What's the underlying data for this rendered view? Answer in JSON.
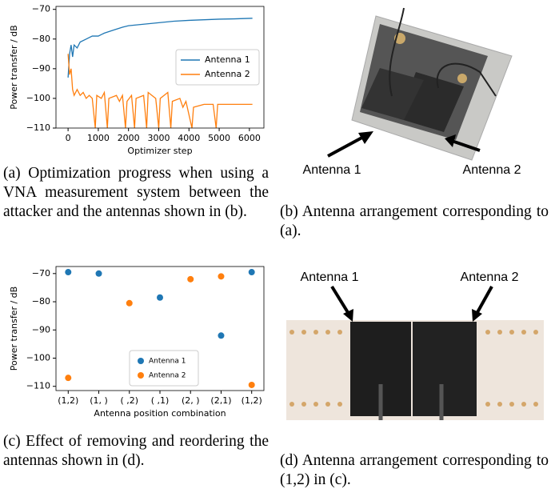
{
  "chart_data": [
    {
      "type": "line",
      "ylabel": "Power transfer / dB",
      "xlabel": "Optimizer step",
      "xlim": [
        -400,
        6480
      ],
      "ylim": [
        -110,
        -69
      ],
      "xticks": [
        0,
        1000,
        2000,
        3000,
        4000,
        5000,
        6000
      ],
      "yticks": [
        {
          "value": -70,
          "label": "−70"
        },
        {
          "value": -80,
          "label": "−80"
        },
        {
          "value": -90,
          "label": "−90"
        },
        {
          "value": -100,
          "label": "−100"
        },
        {
          "value": -110,
          "label": "−110"
        }
      ],
      "legend": "right",
      "series": [
        {
          "name": "Antenna 1",
          "color": "#1f77b4",
          "x": [
            0,
            50,
            100,
            150,
            200,
            300,
            400,
            600,
            800,
            1000,
            1200,
            1500,
            1800,
            2000,
            2500,
            3000,
            3500,
            4000,
            4500,
            5000,
            5500,
            6100
          ],
          "values": [
            -93,
            -85,
            -82,
            -86,
            -82,
            -83,
            -81,
            -80,
            -79,
            -79,
            -78,
            -77,
            -76,
            -75.5,
            -75,
            -74.5,
            -74,
            -73.7,
            -73.5,
            -73.3,
            -73.2,
            -73
          ]
        },
        {
          "name": "Antenna 2",
          "color": "#ff7f0e",
          "x": [
            0,
            50,
            100,
            150,
            200,
            300,
            400,
            500,
            600,
            700,
            800,
            900,
            950,
            1100,
            1200,
            1300,
            1350,
            1600,
            1700,
            1800,
            1900,
            1950,
            2100,
            2200,
            2250,
            2500,
            2600,
            2650,
            2900,
            3000,
            3050,
            3300,
            3400,
            3450,
            3700,
            3800,
            3900,
            4100,
            4150,
            4500,
            4800,
            4900,
            4950,
            5500,
            6100
          ],
          "values": [
            -85,
            -92,
            -90,
            -97,
            -99,
            -97,
            -99,
            -98,
            -100,
            -99,
            -100,
            -110,
            -99,
            -100,
            -98,
            -110,
            -100,
            -99,
            -101,
            -99,
            -110,
            -101,
            -99,
            -110,
            -100,
            -99,
            -110,
            -98,
            -100,
            -110,
            -100,
            -98,
            -110,
            -101,
            -100,
            -103,
            -101,
            -110,
            -103,
            -102,
            -102,
            -110,
            -102,
            -102,
            -102
          ]
        }
      ]
    },
    {
      "type": "scatter",
      "ylabel": "Power transfer / dB",
      "xlabel": "Antenna position combination",
      "categories": [
        "(1,2)",
        "(1, )",
        "( ,2)",
        "( ,1)",
        "(2, )",
        "(2,1)",
        "(1,2)"
      ],
      "ylim": [
        -111.5,
        -67.5
      ],
      "yticks": [
        {
          "value": -70,
          "label": "−70"
        },
        {
          "value": -80,
          "label": "−80"
        },
        {
          "value": -90,
          "label": "−90"
        },
        {
          "value": -100,
          "label": "−100"
        },
        {
          "value": -110,
          "label": "−110"
        }
      ],
      "legend": "lower center",
      "series": [
        {
          "name": "Antenna 1",
          "color": "#1f77b4",
          "values": [
            -69.5,
            -70,
            null,
            -78.5,
            null,
            -92,
            -69.5
          ]
        },
        {
          "name": "Antenna 2",
          "color": "#ff7f0e",
          "values": [
            -107,
            null,
            -80.5,
            null,
            -72,
            -71,
            -109.5
          ]
        }
      ]
    }
  ],
  "captions": [
    "(a) Optimization progress when using a VNA measurement system between the attacker and the antennas shown in (b).",
    "(b) Antenna arrangement corresponding to (a).",
    "(c) Effect of removing and reordering the antennas shown in (d).",
    "(d) Antenna arrangement corresponding to (1,2) in (c)."
  ],
  "photos": [
    {
      "labels": [
        "Antenna 1",
        "Antenna 2"
      ]
    },
    {
      "labels": [
        "Antenna 1",
        "Antenna 2"
      ]
    }
  ]
}
